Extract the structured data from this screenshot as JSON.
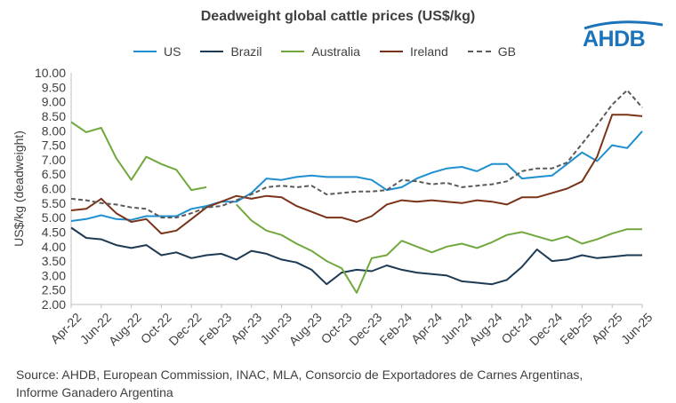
{
  "chart_data": {
    "type": "line",
    "title": "Deadweight global cattle prices (US$/kg)",
    "xlabel": "",
    "ylabel": "US$/kg (deadweight)",
    "ylim": [
      2.0,
      10.0
    ],
    "ytick_labels": [
      "2.00",
      "2.50",
      "3.00",
      "3.50",
      "4.00",
      "4.50",
      "5.00",
      "5.50",
      "6.00",
      "6.50",
      "7.00",
      "7.50",
      "8.00",
      "8.50",
      "9.00",
      "9.50",
      "10.00"
    ],
    "x": [
      "Apr-22",
      "May-22",
      "Jun-22",
      "Jul-22",
      "Aug-22",
      "Sep-22",
      "Oct-22",
      "Nov-22",
      "Dec-22",
      "Jan-23",
      "Feb-23",
      "Mar-23",
      "Apr-23",
      "May-23",
      "Jun-23",
      "Jul-23",
      "Aug-23",
      "Sep-23",
      "Oct-23",
      "Nov-23",
      "Dec-23",
      "Jan-24",
      "Feb-24",
      "Mar-24",
      "Apr-24",
      "May-24",
      "Jun-24",
      "Jul-24",
      "Aug-24",
      "Sep-24",
      "Oct-24",
      "Nov-24",
      "Dec-24",
      "Jan-25",
      "Feb-25",
      "Mar-25",
      "Apr-25",
      "May-25",
      "Jun-25"
    ],
    "xtick_labels": [
      "Apr-22",
      "Jun-22",
      "Aug-22",
      "Oct-22",
      "Dec-22",
      "Feb-23",
      "Apr-23",
      "Jun-23",
      "Aug-23",
      "Oct-23",
      "Dec-23",
      "Feb-24",
      "Apr-24",
      "Jun-24",
      "Aug-24",
      "Oct-24",
      "Dec-24",
      "Feb-25",
      "Apr-25",
      "Jun-25"
    ],
    "series": [
      {
        "name": "US",
        "color": "#1e8fd0",
        "dash": false,
        "values": [
          4.88,
          4.95,
          5.08,
          4.95,
          4.92,
          5.05,
          5.05,
          5.05,
          5.3,
          5.4,
          5.55,
          5.55,
          5.85,
          6.35,
          6.3,
          6.4,
          6.45,
          6.4,
          6.4,
          6.4,
          6.3,
          5.95,
          6.05,
          6.35,
          6.55,
          6.7,
          6.75,
          6.6,
          6.85,
          6.85,
          6.35,
          6.4,
          6.45,
          6.85,
          7.25,
          6.95,
          7.5,
          7.4,
          7.98
        ]
      },
      {
        "name": "Brazil",
        "color": "#1d3a54",
        "dash": false,
        "values": [
          4.65,
          4.3,
          4.25,
          4.05,
          3.95,
          4.05,
          3.7,
          3.8,
          3.6,
          3.7,
          3.75,
          3.55,
          3.85,
          3.75,
          3.55,
          3.45,
          3.2,
          2.7,
          3.1,
          3.2,
          3.15,
          3.35,
          3.2,
          3.1,
          3.05,
          3.0,
          2.8,
          2.75,
          2.7,
          2.85,
          3.3,
          3.9,
          3.5,
          3.55,
          3.7,
          3.6,
          3.65,
          3.7,
          3.7
        ]
      },
      {
        "name": "Australia",
        "color": "#71a83d",
        "dash": false,
        "values": [
          8.3,
          7.95,
          8.1,
          7.05,
          6.3,
          7.1,
          6.85,
          6.65,
          5.95,
          6.05,
          null,
          5.45,
          4.9,
          4.55,
          4.4,
          4.1,
          3.85,
          3.5,
          3.25,
          2.4,
          3.6,
          3.7,
          4.2,
          4.0,
          3.8,
          4.0,
          4.1,
          3.95,
          4.15,
          4.4,
          4.5,
          4.35,
          4.2,
          4.35,
          4.1,
          4.25,
          4.45,
          4.6,
          4.6
        ]
      },
      {
        "name": "Ireland",
        "color": "#7a3319",
        "dash": false,
        "values": [
          5.25,
          5.3,
          5.65,
          5.15,
          4.85,
          4.95,
          4.45,
          4.55,
          4.95,
          5.35,
          5.55,
          5.75,
          5.65,
          5.75,
          5.7,
          5.4,
          5.2,
          5.0,
          5.0,
          4.85,
          5.05,
          5.45,
          5.6,
          5.55,
          5.6,
          5.55,
          5.5,
          5.6,
          5.55,
          5.45,
          5.7,
          5.7,
          5.85,
          6.0,
          6.25,
          7.1,
          8.55,
          8.55,
          8.5
        ]
      },
      {
        "name": "GB",
        "color": "#5a5a5a",
        "dash": true,
        "values": [
          5.65,
          5.6,
          5.5,
          5.45,
          5.35,
          5.3,
          5.0,
          5.0,
          5.15,
          5.35,
          5.4,
          5.6,
          5.8,
          6.05,
          6.1,
          6.05,
          6.1,
          5.8,
          5.85,
          5.9,
          5.9,
          5.95,
          6.3,
          6.25,
          6.15,
          6.2,
          6.05,
          6.1,
          6.15,
          6.25,
          6.6,
          6.7,
          6.7,
          6.9,
          7.55,
          8.2,
          8.9,
          9.4,
          8.8
        ]
      }
    ]
  },
  "source_note": "Source: AHDB, European Commission, INAC, MLA, Consorcio de Exportadores de Carnes Argentinas, Informe Ganadero Argentina",
  "logo_text": "AHDB",
  "colors": {
    "axis": "#bfbfbf",
    "text": "#404040",
    "logo": "#1b74bb"
  }
}
